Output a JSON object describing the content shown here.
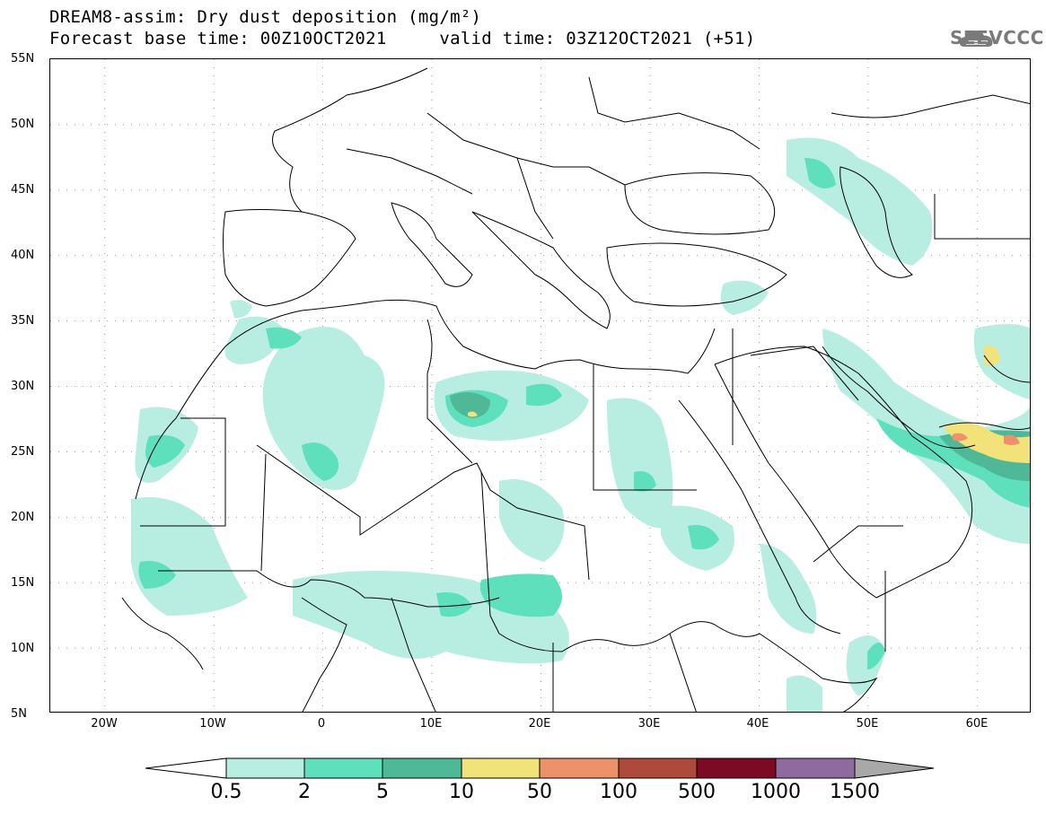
{
  "title": {
    "line1": "DREAM8-assim: Dry dust deposition (mg/m²)",
    "line2": "Forecast base time: 00Z10OCT2021     valid time: 03Z12OCT2021 (+51)"
  },
  "logo": {
    "text": "SEEVCCC",
    "icon": "cloud-logo-icon"
  },
  "axes": {
    "lat_labels": [
      "55N",
      "50N",
      "45N",
      "40N",
      "35N",
      "30N",
      "25N",
      "20N",
      "15N",
      "10N",
      "5N"
    ],
    "lon_labels": [
      "20W",
      "10W",
      "0",
      "10E",
      "20E",
      "30E",
      "40E",
      "50E",
      "60E"
    ],
    "lat_range": [
      5,
      55
    ],
    "lon_range": [
      -25,
      65
    ],
    "grid": "dotted"
  },
  "colorbar": {
    "labels": [
      "0.5",
      "2",
      "5",
      "10",
      "50",
      "100",
      "500",
      "1000",
      "1500"
    ],
    "colors": [
      "#b8ede2",
      "#5fe0bd",
      "#4fb896",
      "#f2e27a",
      "#ec916a",
      "#ad4a3c",
      "#7d0a24",
      "#8f6aa0",
      "#a8a8a8"
    ],
    "under_color": "#ffffff",
    "over_color": "#a8a8a8"
  },
  "colors": {
    "level1": "#b8ede2",
    "level2": "#5fe0bd",
    "level3": "#4fb896",
    "level4": "#f2e27a",
    "level5": "#ec916a",
    "border": "#000000"
  }
}
